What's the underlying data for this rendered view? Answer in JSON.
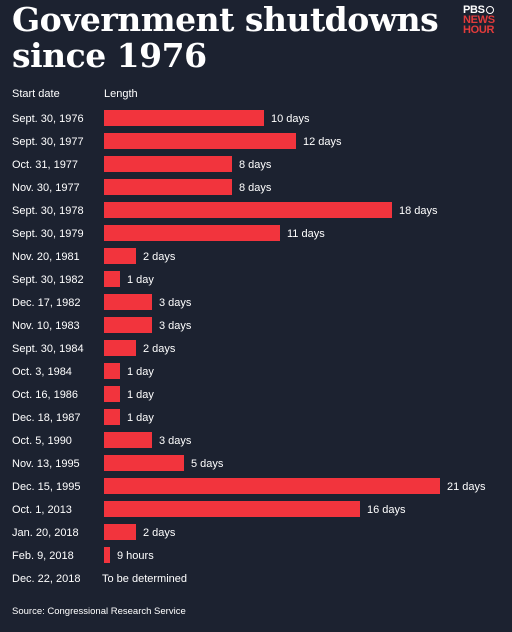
{
  "title_lines": [
    "Government shutdowns",
    "since 1976"
  ],
  "logo": {
    "line1": "PBS",
    "line2": "NEWS",
    "line3": "HOUR"
  },
  "colors": {
    "background": "#1c2230",
    "bar": "#f2343d",
    "logo_red": "#e23b3b",
    "text": "#ffffff"
  },
  "chart_data": {
    "type": "bar",
    "orientation": "horizontal",
    "title": "Government shutdowns since 1976",
    "column_headers": {
      "date": "Start date",
      "length": "Length"
    },
    "unit": "days",
    "rows": [
      {
        "start": "Sept. 30, 1976",
        "days": 10,
        "label": "10 days"
      },
      {
        "start": "Sept. 30, 1977",
        "days": 12,
        "label": "12 days"
      },
      {
        "start": "Oct. 31, 1977",
        "days": 8,
        "label": "8 days"
      },
      {
        "start": "Nov. 30, 1977",
        "days": 8,
        "label": "8 days"
      },
      {
        "start": "Sept. 30, 1978",
        "days": 18,
        "label": "18 days"
      },
      {
        "start": "Sept. 30, 1979",
        "days": 11,
        "label": "11 days"
      },
      {
        "start": "Nov. 20, 1981",
        "days": 2,
        "label": "2 days"
      },
      {
        "start": "Sept. 30, 1982",
        "days": 1,
        "label": "1 day"
      },
      {
        "start": "Dec. 17, 1982",
        "days": 3,
        "label": "3 days"
      },
      {
        "start": "Nov. 10, 1983",
        "days": 3,
        "label": "3 days"
      },
      {
        "start": "Sept. 30, 1984",
        "days": 2,
        "label": "2 days"
      },
      {
        "start": "Oct. 3, 1984",
        "days": 1,
        "label": "1 day"
      },
      {
        "start": "Oct. 16, 1986",
        "days": 1,
        "label": "1 day"
      },
      {
        "start": "Dec. 18, 1987",
        "days": 1,
        "label": "1 day"
      },
      {
        "start": "Oct. 5, 1990",
        "days": 3,
        "label": "3 days"
      },
      {
        "start": "Nov. 13, 1995",
        "days": 5,
        "label": "5 days"
      },
      {
        "start": "Dec. 15, 1995",
        "days": 21,
        "label": "21 days"
      },
      {
        "start": "Oct. 1, 2013",
        "days": 16,
        "label": "16 days"
      },
      {
        "start": "Jan. 20, 2018",
        "days": 2,
        "label": "2 days"
      },
      {
        "start": "Feb. 9, 2018",
        "days": 0.375,
        "label": "9 hours"
      },
      {
        "start": "Dec. 22, 2018",
        "days": null,
        "label": "To be determined"
      }
    ],
    "xlim": [
      0,
      21
    ]
  },
  "source": "Source: Congressional Research Service"
}
